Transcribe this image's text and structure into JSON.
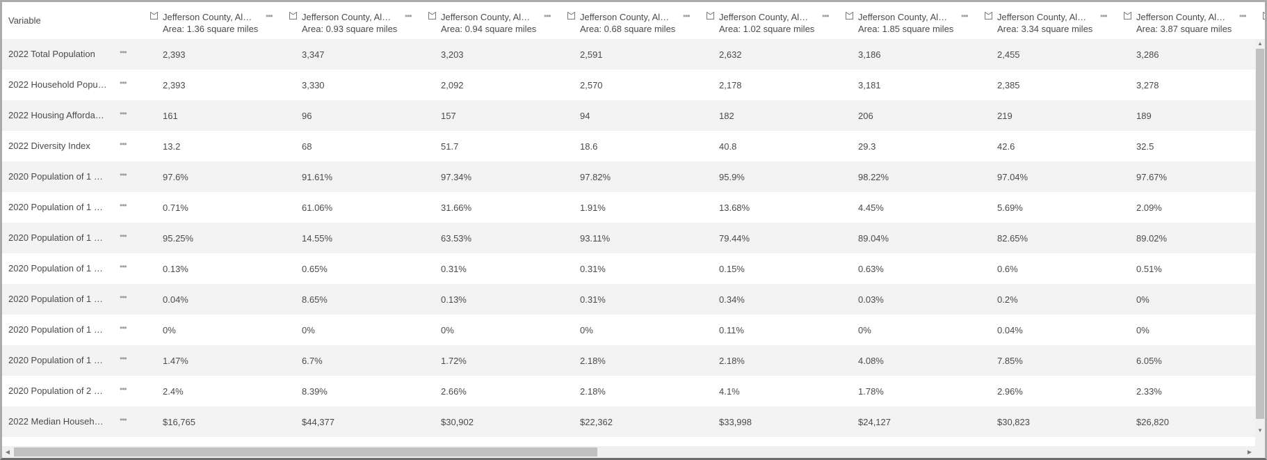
{
  "header": {
    "variable_label": "Variable",
    "columns": [
      {
        "title": "Jefferson County, Al…",
        "subtitle": "Area: 1.36 square miles",
        "icon": "polygon-area-icon",
        "menu": "•••"
      },
      {
        "title": "Jefferson County, Al…",
        "subtitle": "Area: 0.93 square miles",
        "icon": "polygon-area-icon",
        "menu": "•••"
      },
      {
        "title": "Jefferson County, Al…",
        "subtitle": "Area: 0.94 square miles",
        "icon": "polygon-area-icon",
        "menu": "•••"
      },
      {
        "title": "Jefferson County, Al…",
        "subtitle": "Area: 0.68 square miles",
        "icon": "polygon-area-icon",
        "menu": "•••"
      },
      {
        "title": "Jefferson County, Al…",
        "subtitle": "Area: 1.02 square miles",
        "icon": "polygon-area-icon",
        "menu": "•••"
      },
      {
        "title": "Jefferson County, Al…",
        "subtitle": "Area: 1.85 square miles",
        "icon": "polygon-area-icon",
        "menu": "•••"
      },
      {
        "title": "Jefferson County, Al…",
        "subtitle": "Area: 3.34 square miles",
        "icon": "polygon-area-icon",
        "menu": "•••"
      },
      {
        "title": "Jefferson County, Al…",
        "subtitle": "Area: 3.87 square miles",
        "icon": "polygon-area-icon",
        "menu": "•••"
      },
      {
        "title": "",
        "subtitle": "",
        "icon": "polygon-area-icon",
        "menu": ""
      }
    ]
  },
  "rows": [
    {
      "label": "2022 Total Population",
      "menu": "•••",
      "values": [
        "2,393",
        "3,347",
        "3,203",
        "2,591",
        "2,632",
        "3,186",
        "2,455",
        "3,286"
      ]
    },
    {
      "label": "2022 Household Popu…",
      "menu": "•••",
      "values": [
        "2,393",
        "3,330",
        "2,092",
        "2,570",
        "2,178",
        "3,181",
        "2,385",
        "3,278"
      ]
    },
    {
      "label": "2022 Housing Afforda…",
      "menu": "•••",
      "values": [
        "161",
        "96",
        "157",
        "94",
        "182",
        "206",
        "219",
        "189"
      ]
    },
    {
      "label": "2022 Diversity Index",
      "menu": "•••",
      "values": [
        "13.2",
        "68",
        "51.7",
        "18.6",
        "40.8",
        "29.3",
        "42.6",
        "32.5"
      ]
    },
    {
      "label": "2020 Population of 1 …",
      "menu": "•••",
      "values": [
        "97.6%",
        "91.61%",
        "97.34%",
        "97.82%",
        "95.9%",
        "98.22%",
        "97.04%",
        "97.67%"
      ]
    },
    {
      "label": "2020 Population of 1 …",
      "menu": "•••",
      "values": [
        "0.71%",
        "61.06%",
        "31.66%",
        "1.91%",
        "13.68%",
        "4.45%",
        "5.69%",
        "2.09%"
      ]
    },
    {
      "label": "2020 Population of 1 …",
      "menu": "•••",
      "values": [
        "95.25%",
        "14.55%",
        "63.53%",
        "93.11%",
        "79.44%",
        "89.04%",
        "82.65%",
        "89.02%"
      ]
    },
    {
      "label": "2020 Population of 1 …",
      "menu": "•••",
      "values": [
        "0.13%",
        "0.65%",
        "0.31%",
        "0.31%",
        "0.15%",
        "0.63%",
        "0.6%",
        "0.51%"
      ]
    },
    {
      "label": "2020 Population of 1 …",
      "menu": "•••",
      "values": [
        "0.04%",
        "8.65%",
        "0.13%",
        "0.31%",
        "0.34%",
        "0.03%",
        "0.2%",
        "0%"
      ]
    },
    {
      "label": "2020 Population of 1 …",
      "menu": "•••",
      "values": [
        "0%",
        "0%",
        "0%",
        "0%",
        "0.11%",
        "0%",
        "0.04%",
        "0%"
      ]
    },
    {
      "label": "2020 Population of 1 …",
      "menu": "•••",
      "values": [
        "1.47%",
        "6.7%",
        "1.72%",
        "2.18%",
        "2.18%",
        "4.08%",
        "7.85%",
        "6.05%"
      ]
    },
    {
      "label": "2020 Population of 2 …",
      "menu": "•••",
      "values": [
        "2.4%",
        "8.39%",
        "2.66%",
        "2.18%",
        "4.1%",
        "1.78%",
        "2.96%",
        "2.33%"
      ]
    },
    {
      "label": "2022 Median Househ…",
      "menu": "•••",
      "values": [
        "$16,765",
        "$44,377",
        "$30,902",
        "$22,362",
        "$33,998",
        "$24,127",
        "$30,823",
        "$26,820"
      ]
    }
  ],
  "scrollbars": {
    "up_arrow": "▲",
    "down_arrow": "▼",
    "left_arrow": "◀",
    "right_arrow": "▶"
  },
  "colors": {
    "text": "#4a4a4a",
    "row_alt": "#f3f3f3",
    "menu_dots": "#a0a0a0",
    "scroll_thumb": "#c1c1c1",
    "scroll_track": "#f0f0f0",
    "frame_border": "#ababab"
  }
}
